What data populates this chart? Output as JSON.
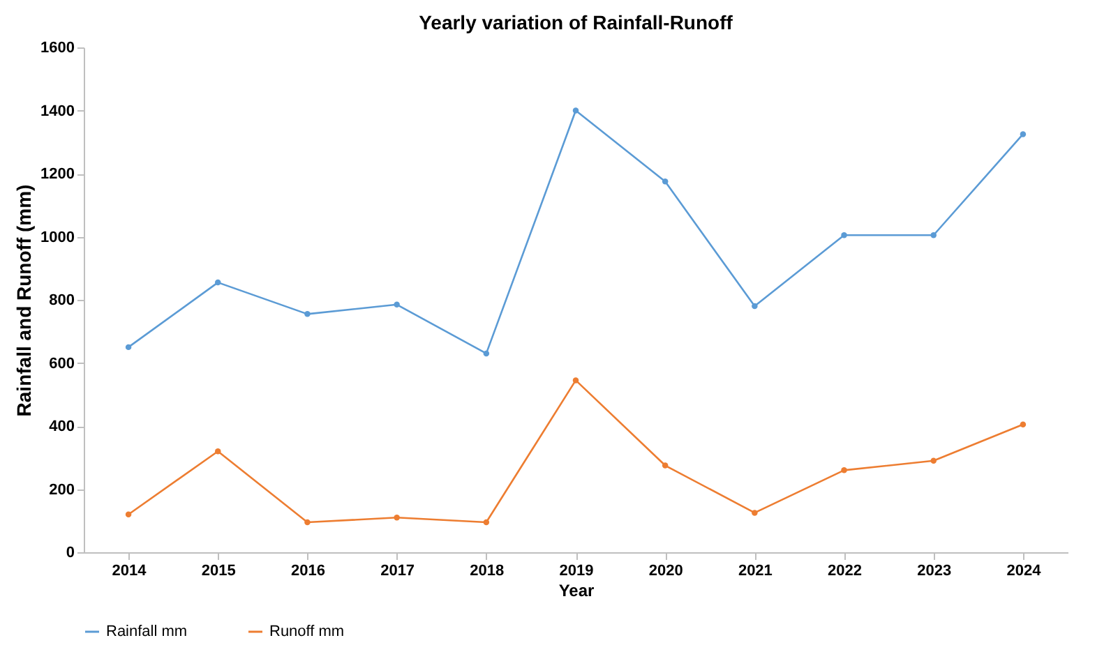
{
  "chart_data": {
    "type": "line",
    "title": "Yearly variation of Rainfall-Runoff",
    "xlabel": "Year",
    "ylabel": "Rainfall and Runoff (mm)",
    "categories": [
      "2014",
      "2015",
      "2016",
      "2017",
      "2018",
      "2019",
      "2020",
      "2021",
      "2022",
      "2023",
      "2024"
    ],
    "series": [
      {
        "name": "Rainfall mm",
        "color": "#5b9bd5",
        "values": [
          650,
          855,
          755,
          785,
          630,
          1400,
          1175,
          780,
          1005,
          1005,
          1325
        ]
      },
      {
        "name": "Runoff mm",
        "color": "#ed7d31",
        "values": [
          120,
          320,
          95,
          110,
          95,
          545,
          275,
          125,
          260,
          290,
          405
        ]
      }
    ],
    "ylim": [
      0,
      1600
    ],
    "yticks": [
      0,
      200,
      400,
      600,
      800,
      1000,
      1200,
      1400,
      1600
    ],
    "grid": false,
    "legend": "bottom",
    "marker": "circle",
    "line_style": "solid"
  }
}
